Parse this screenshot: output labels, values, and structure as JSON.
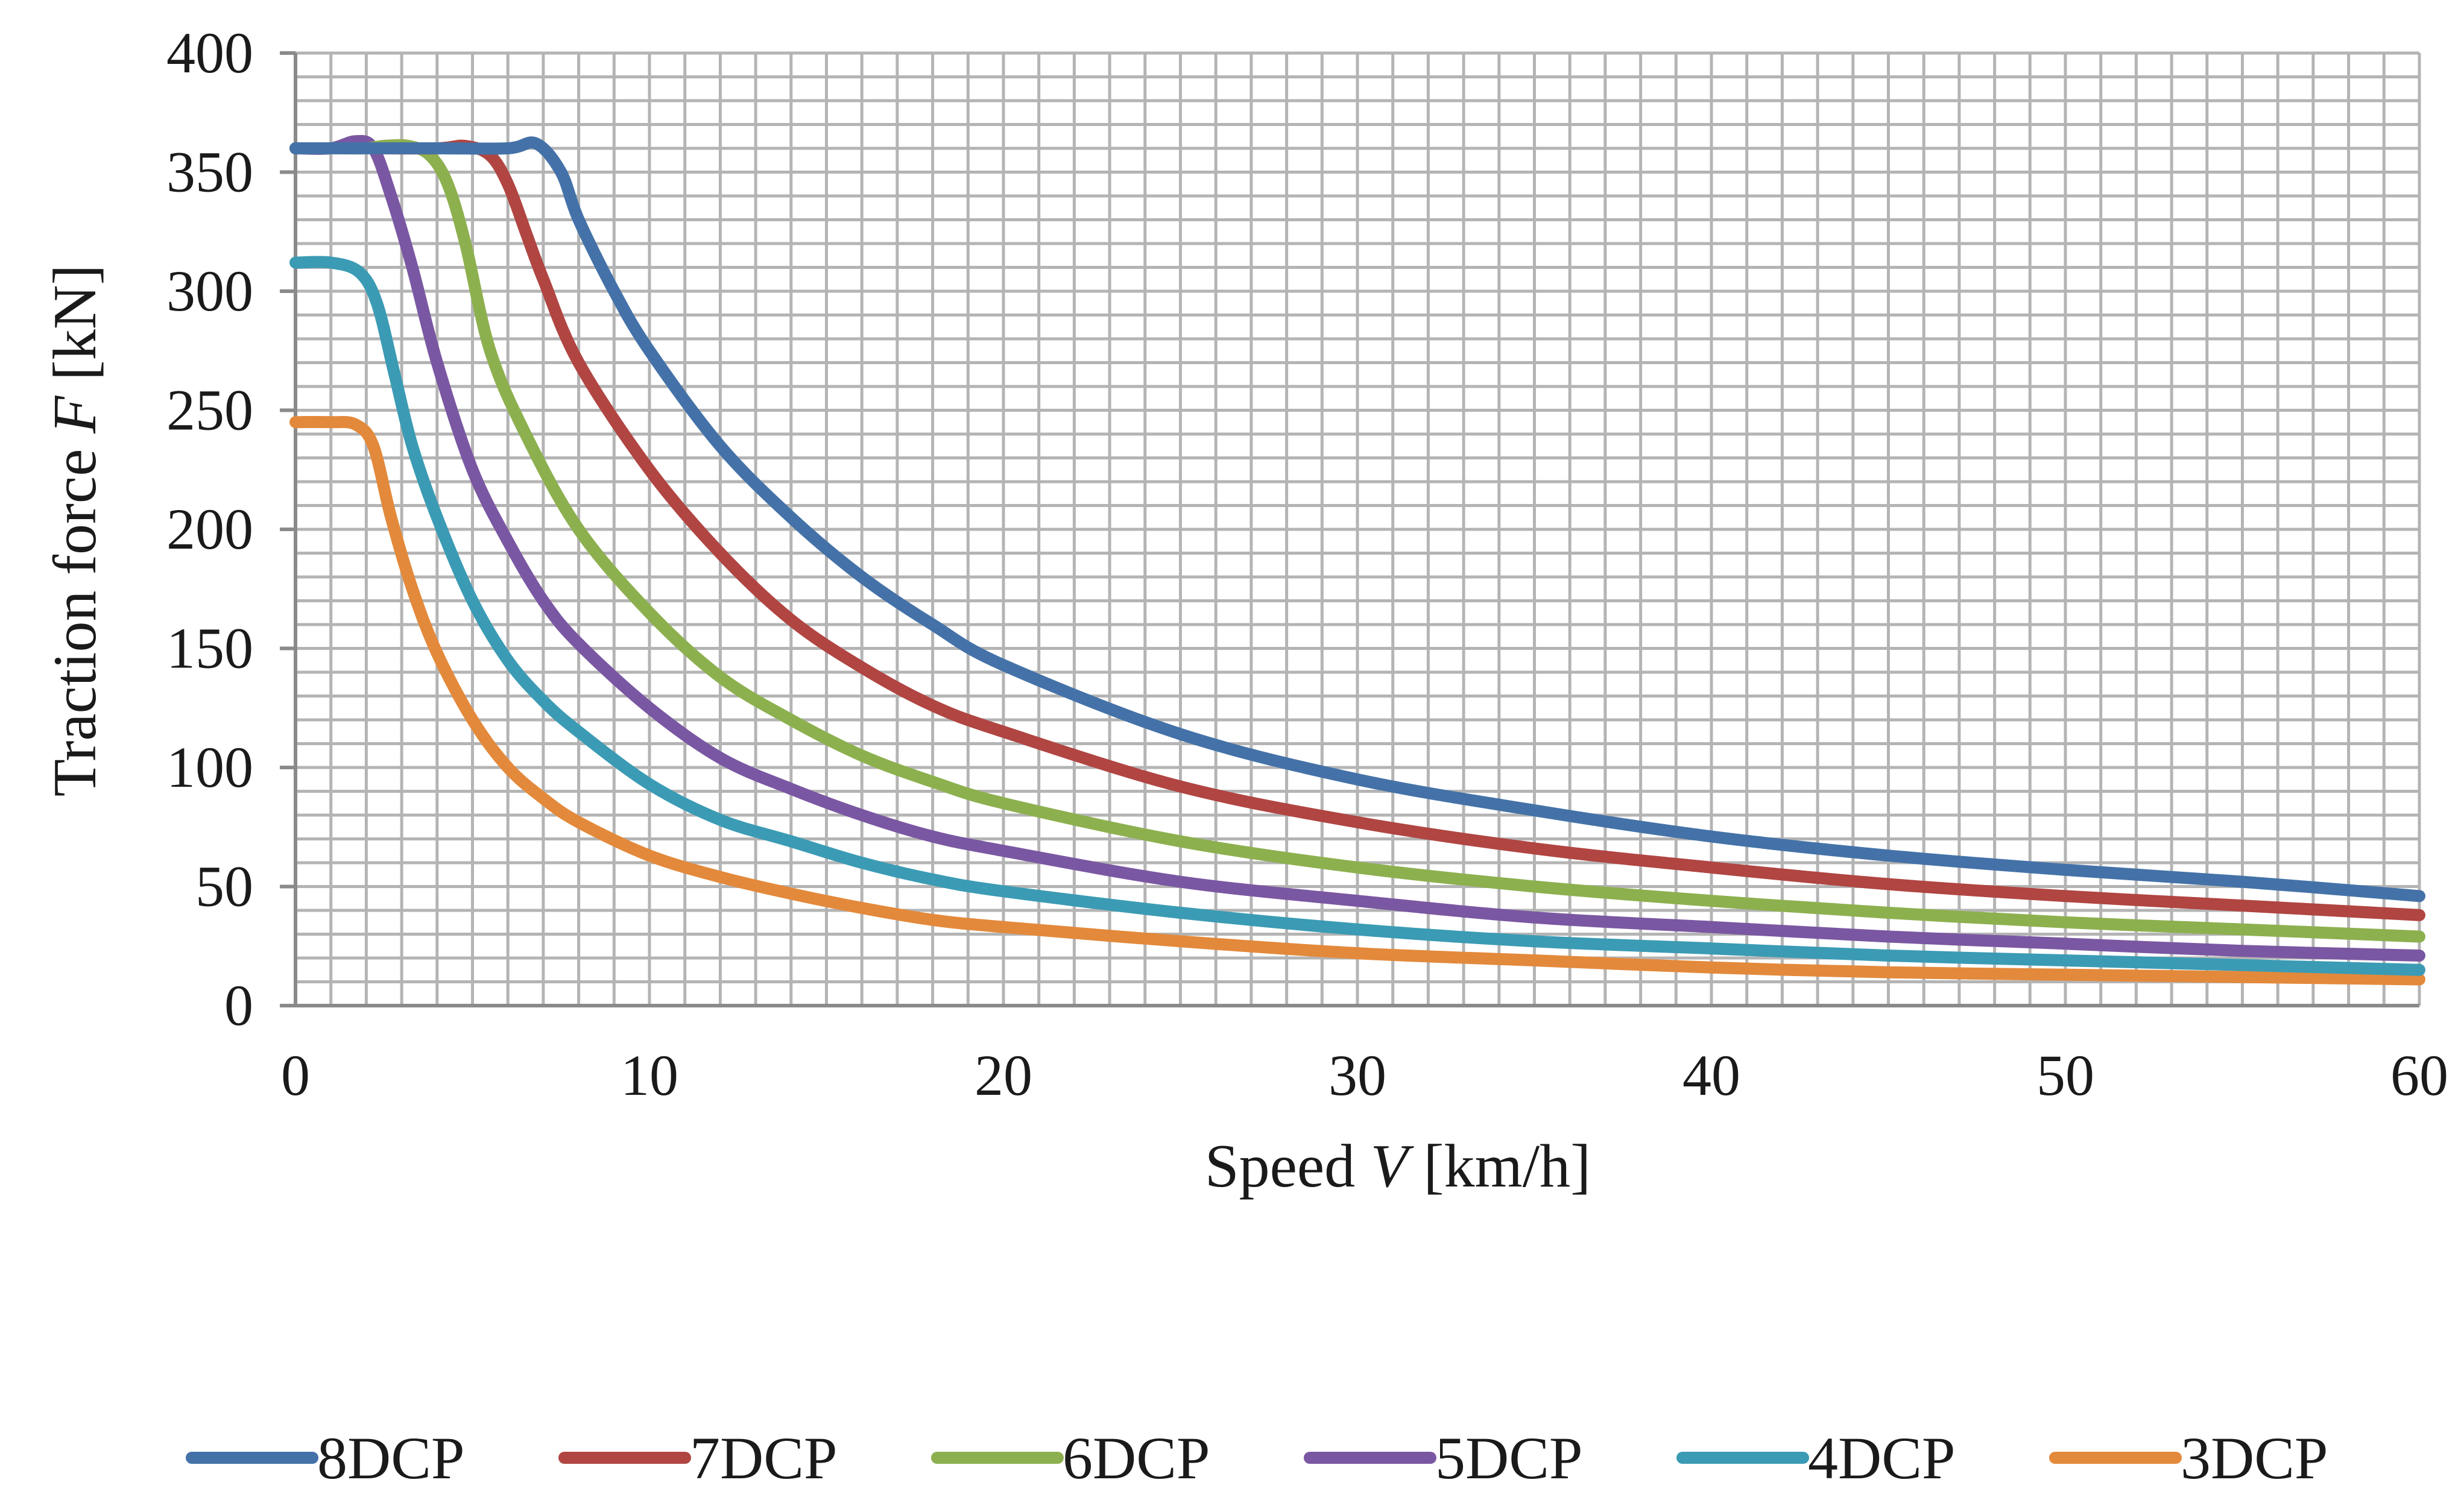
{
  "chart_data": {
    "type": "line",
    "xlabel": "Speed V [km/h]",
    "xlabel_parts": {
      "prefix": "Speed ",
      "var": "V",
      "suffix": " [km/h]"
    },
    "ylabel": "Traction force F [kN]",
    "ylabel_parts": {
      "prefix": "Traction force ",
      "var": "F",
      "suffix": " [kN]"
    },
    "xlim": [
      0,
      60
    ],
    "ylim": [
      0,
      400
    ],
    "xticks": [
      0,
      10,
      20,
      30,
      40,
      50,
      60
    ],
    "yticks": [
      0,
      50,
      100,
      150,
      200,
      250,
      300,
      350,
      400
    ],
    "x_grid_step": 1,
    "y_grid_step": 10,
    "grid": true,
    "legend_position": "bottom",
    "series": [
      {
        "name": "8DCP",
        "color": "#4472a8",
        "points": [
          [
            0,
            360
          ],
          [
            2,
            360
          ],
          [
            4,
            360
          ],
          [
            6,
            360
          ],
          [
            6.8,
            362
          ],
          [
            7.5,
            350
          ],
          [
            8,
            330
          ],
          [
            9,
            300
          ],
          [
            10,
            275
          ],
          [
            12,
            235
          ],
          [
            14,
            205
          ],
          [
            16,
            180
          ],
          [
            18,
            160
          ],
          [
            20,
            143
          ],
          [
            25,
            114
          ],
          [
            30,
            95
          ],
          [
            35,
            82
          ],
          [
            40,
            71
          ],
          [
            45,
            63
          ],
          [
            50,
            57
          ],
          [
            55,
            52
          ],
          [
            60,
            46
          ]
        ]
      },
      {
        "name": "7DCP",
        "color": "#b04542",
        "points": [
          [
            0,
            360
          ],
          [
            2,
            360
          ],
          [
            4,
            360
          ],
          [
            4.8,
            361
          ],
          [
            5.5,
            357
          ],
          [
            6,
            345
          ],
          [
            6.5,
            325
          ],
          [
            7,
            305
          ],
          [
            8,
            270
          ],
          [
            10,
            225
          ],
          [
            12,
            190
          ],
          [
            14,
            162
          ],
          [
            16,
            142
          ],
          [
            18,
            126
          ],
          [
            20,
            115
          ],
          [
            25,
            92
          ],
          [
            30,
            77
          ],
          [
            35,
            66
          ],
          [
            40,
            58
          ],
          [
            45,
            51
          ],
          [
            50,
            46
          ],
          [
            55,
            42
          ],
          [
            60,
            38
          ]
        ]
      },
      {
        "name": "6DCP",
        "color": "#8db04f",
        "points": [
          [
            0,
            360
          ],
          [
            1,
            360
          ],
          [
            2,
            360
          ],
          [
            2.5,
            361
          ],
          [
            3.2,
            361
          ],
          [
            3.8,
            357
          ],
          [
            4.3,
            345
          ],
          [
            4.8,
            320
          ],
          [
            5.5,
            275
          ],
          [
            6.5,
            240
          ],
          [
            8,
            200
          ],
          [
            10,
            165
          ],
          [
            12,
            138
          ],
          [
            14,
            120
          ],
          [
            16,
            105
          ],
          [
            18,
            94
          ],
          [
            20,
            85
          ],
          [
            25,
            69
          ],
          [
            30,
            58
          ],
          [
            35,
            50
          ],
          [
            40,
            44
          ],
          [
            45,
            39
          ],
          [
            50,
            35
          ],
          [
            55,
            32
          ],
          [
            60,
            29
          ]
        ]
      },
      {
        "name": "5DCP",
        "color": "#7a57a2",
        "points": [
          [
            0,
            360
          ],
          [
            1,
            360
          ],
          [
            1.7,
            363
          ],
          [
            2.2,
            360
          ],
          [
            2.7,
            340
          ],
          [
            3.3,
            310
          ],
          [
            4,
            270
          ],
          [
            5,
            225
          ],
          [
            6,
            195
          ],
          [
            7,
            170
          ],
          [
            8,
            152
          ],
          [
            10,
            125
          ],
          [
            12,
            104
          ],
          [
            14,
            91
          ],
          [
            16,
            80
          ],
          [
            18,
            71
          ],
          [
            20,
            65
          ],
          [
            25,
            52
          ],
          [
            30,
            44
          ],
          [
            35,
            37
          ],
          [
            40,
            33
          ],
          [
            45,
            29
          ],
          [
            50,
            26
          ],
          [
            55,
            23
          ],
          [
            60,
            21
          ]
        ]
      },
      {
        "name": "4DCP",
        "color": "#3b9bb4",
        "points": [
          [
            0,
            312
          ],
          [
            1,
            312
          ],
          [
            1.8,
            308
          ],
          [
            2.3,
            295
          ],
          [
            2.8,
            265
          ],
          [
            3.3,
            235
          ],
          [
            4,
            205
          ],
          [
            5,
            170
          ],
          [
            6,
            145
          ],
          [
            7,
            128
          ],
          [
            8,
            115
          ],
          [
            10,
            93
          ],
          [
            12,
            78
          ],
          [
            14,
            69
          ],
          [
            16,
            60
          ],
          [
            18,
            53
          ],
          [
            20,
            48
          ],
          [
            25,
            39
          ],
          [
            30,
            32
          ],
          [
            35,
            27
          ],
          [
            40,
            24
          ],
          [
            45,
            21
          ],
          [
            50,
            19
          ],
          [
            55,
            17
          ],
          [
            60,
            15
          ]
        ]
      },
      {
        "name": "3DCP",
        "color": "#e3893b",
        "points": [
          [
            0,
            245
          ],
          [
            1,
            245
          ],
          [
            1.7,
            244
          ],
          [
            2.2,
            235
          ],
          [
            2.7,
            205
          ],
          [
            3.3,
            175
          ],
          [
            4,
            148
          ],
          [
            5,
            120
          ],
          [
            6,
            100
          ],
          [
            7,
            87
          ],
          [
            8,
            77
          ],
          [
            10,
            63
          ],
          [
            12,
            54
          ],
          [
            14,
            47
          ],
          [
            16,
            41
          ],
          [
            18,
            36
          ],
          [
            20,
            33
          ],
          [
            25,
            27
          ],
          [
            30,
            22
          ],
          [
            35,
            19
          ],
          [
            40,
            16
          ],
          [
            45,
            14
          ],
          [
            50,
            13
          ],
          [
            55,
            12
          ],
          [
            60,
            11
          ]
        ]
      }
    ]
  }
}
